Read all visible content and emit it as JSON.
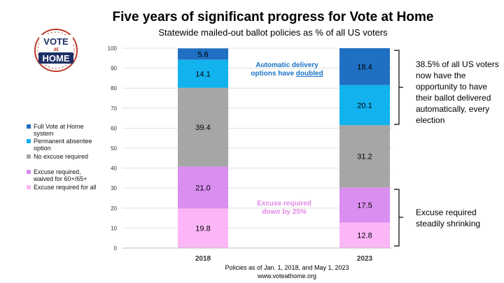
{
  "title": "Five years of significant progress for Vote at Home",
  "subtitle": "Statewide mailed-out ballot policies as % of all US voters",
  "logo": {
    "line1": "VOTE",
    "line2": "at",
    "line3": "HOME"
  },
  "chart_data": {
    "type": "bar",
    "stacked": true,
    "categories": [
      "2018",
      "2023"
    ],
    "ylim": [
      0,
      100
    ],
    "yticks": [
      "0",
      "10",
      "20",
      "30",
      "40",
      "50",
      "60",
      "70",
      "80",
      "90",
      "100"
    ],
    "series": [
      {
        "name": "Excuse required for all",
        "color": "#fbb6f7",
        "values": [
          19.8,
          12.8
        ],
        "labels": [
          "19.8",
          "12.8"
        ]
      },
      {
        "name": "Excuse required, waived for 60+/65+",
        "color": "#d98ef0",
        "values": [
          21.0,
          17.5
        ],
        "labels": [
          "21.0",
          "17.5"
        ]
      },
      {
        "name": "No excuse required",
        "color": "#a6a6a6",
        "values": [
          39.4,
          31.2
        ],
        "labels": [
          "39.4",
          "31.2"
        ]
      },
      {
        "name": "Permanent absentee option",
        "color": "#12b2ef",
        "values": [
          14.1,
          20.1
        ],
        "labels": [
          "14.1",
          "20.1"
        ]
      },
      {
        "name": "Full Vote at Home system",
        "color": "#1f6fc2",
        "values": [
          5.6,
          18.4
        ],
        "labels": [
          "5.6",
          "18.4"
        ]
      }
    ],
    "legend_position": "left",
    "grid": true
  },
  "legend": [
    {
      "line1": "Full Vote at Home",
      "line2": "system",
      "color": "#1f6fc2"
    },
    {
      "line1": "Permanent absentee",
      "line2": "option",
      "color": "#12b2ef"
    },
    {
      "line1": "No excuse required",
      "line2": "",
      "color": "#a6a6a6"
    },
    {
      "line1": "Excuse required,",
      "line2": "waived for 60+/65+",
      "color": "#d98ef0"
    },
    {
      "line1": "Excuse required for all",
      "line2": "",
      "color": "#fbb6f7"
    }
  ],
  "annotations": {
    "delivery_line1": "Automatic delivery",
    "delivery_line2_pre": "options have ",
    "delivery_line2_u": "doubled",
    "excuse_line1": "Excuse required",
    "excuse_line2": "down by 25%"
  },
  "notes": {
    "top": "38.5% of all US voters now have the opportunity to have their ballot delivered automatically, every election",
    "bottom": "Excuse required steadily shrinking"
  },
  "footer": {
    "line1": "Policies as of Jan. 1, 2018, and May 1, 2023",
    "line2": "www.voteathome.org"
  }
}
